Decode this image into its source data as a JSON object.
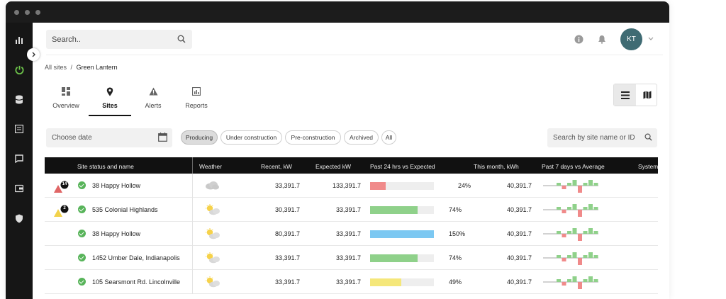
{
  "header": {
    "search_placeholder": "Search..",
    "avatar_initials": "KT"
  },
  "breadcrumb": {
    "root": "All sites",
    "separator": "/",
    "current": "Green Lantern"
  },
  "tabs": [
    {
      "label": "Overview",
      "icon": "dashboard-icon"
    },
    {
      "label": "Sites",
      "icon": "location-pin-icon",
      "active": true
    },
    {
      "label": "Alerts",
      "icon": "warning-icon"
    },
    {
      "label": "Reports",
      "icon": "report-chart-icon"
    }
  ],
  "filters": {
    "date_placeholder": "Choose date",
    "chips": [
      "Producing",
      "Under construction",
      "Pre-construction",
      "Archived",
      "All"
    ],
    "active_chip": "Producing",
    "site_search_placeholder": "Search by site name or ID"
  },
  "table": {
    "columns": [
      "Site status and name",
      "Weather",
      "Recent, kW",
      "Expected kW",
      "Past 24 hrs vs Expected",
      "This month, kWh",
      "Past 7 days vs Average",
      "System"
    ],
    "rows": [
      {
        "name": "38 Happy Hollow",
        "alert_count": "14",
        "alert_color": "#e06666",
        "weather": "cloudy",
        "recent": "33,391.7",
        "expected": "133,391.7",
        "pct_value": 24,
        "pct": "24%",
        "bar_color": "#f08a8a",
        "month": "40,391.7"
      },
      {
        "name": "535 Colonial Highlands",
        "alert_count": "2",
        "alert_color": "#f2d24b",
        "weather": "partly-sunny",
        "recent": "30,391.7",
        "expected": "33,391.7",
        "pct_value": 74,
        "pct": "74%",
        "bar_color": "#8fd18a",
        "month": "40,391.7"
      },
      {
        "name": "38 Happy Hollow",
        "alert_count": "",
        "alert_color": "",
        "weather": "partly-sunny",
        "recent": "80,391.7",
        "expected": "33,391.7",
        "pct_value": 150,
        "pct": "150%",
        "bar_color": "#7cc8f2",
        "month": "40,391.7"
      },
      {
        "name": "1452 Umber Dale, Indianapolis",
        "alert_count": "",
        "alert_color": "",
        "weather": "partly-sunny",
        "recent": "33,391.7",
        "expected": "33,391.7",
        "pct_value": 74,
        "pct": "74%",
        "bar_color": "#8fd18a",
        "month": "40,391.7"
      },
      {
        "name": "105 Searsmont Rd. Lincolnville",
        "alert_count": "",
        "alert_color": "",
        "weather": "partly-sunny",
        "recent": "33,391.7",
        "expected": "33,391.7",
        "pct_value": 49,
        "pct": "49%",
        "bar_color": "#f5e77a",
        "month": "40,391.7"
      }
    ]
  },
  "colors": {
    "sidebar": "#161616",
    "accent_green": "#6cc24a",
    "avatar": "#3f6b73",
    "spark_up": "#8fd18a",
    "spark_down": "#f08a8a"
  }
}
